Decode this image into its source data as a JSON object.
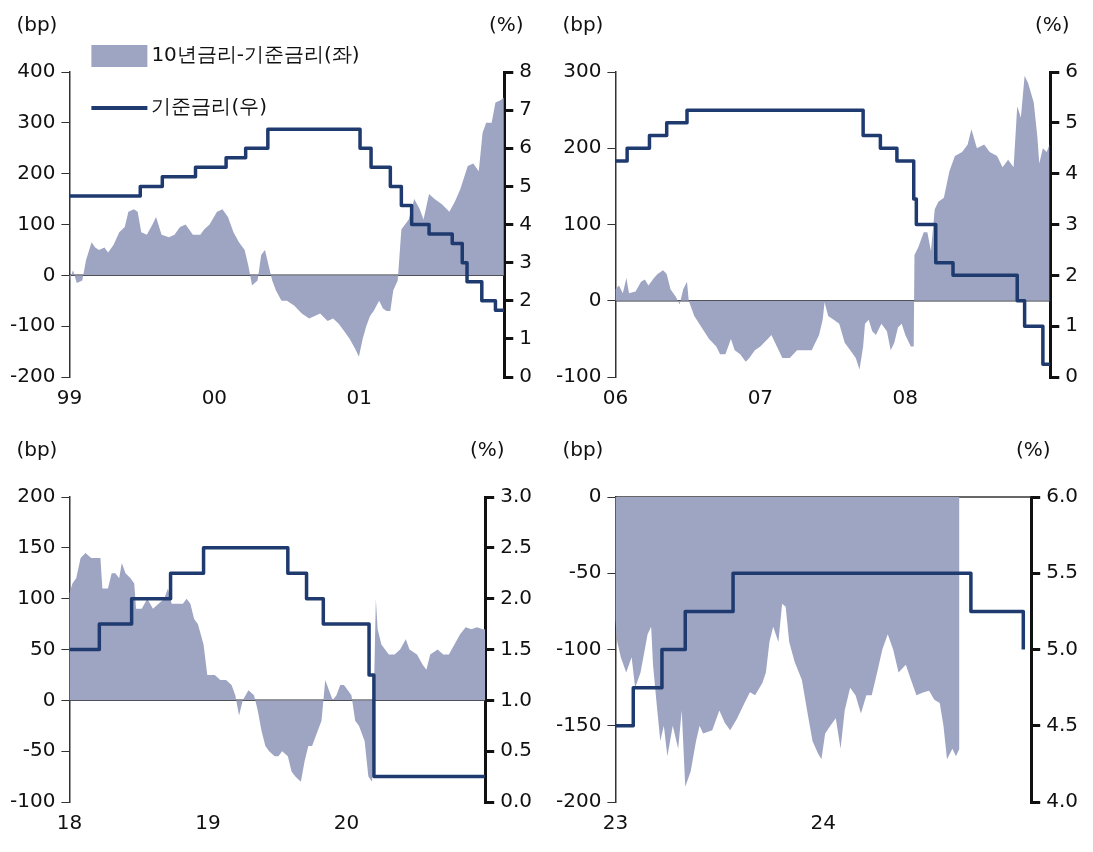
{
  "chart_data": [
    {
      "type": "area",
      "ylabel": "(bp)",
      "y2label": "(%)",
      "legend": "top left",
      "xlim": [
        1999,
        2002
      ],
      "xticks": [
        {
          "value": 1999,
          "label": "99"
        },
        {
          "value": 2000,
          "label": "00"
        },
        {
          "value": 2001,
          "label": "01"
        }
      ],
      "ylim": [
        -200,
        400
      ],
      "yticks": [
        -200,
        -100,
        0,
        100,
        200,
        300,
        400
      ],
      "y2lim": [
        0,
        8
      ],
      "y2ticks": [
        0,
        1,
        2,
        3,
        4,
        5,
        6,
        7,
        8
      ],
      "ref_lines": [
        {
          "axis": "y",
          "value": 0,
          "color": "#333333"
        }
      ],
      "series": [
        {
          "name": "10년금리-기준금리(좌)",
          "type": "area",
          "color": "#9ea5c3",
          "x": [
            1999.0,
            1999.025,
            1999.051,
            1999.089,
            1999.115,
            1999.153,
            1999.178,
            1999.204,
            1999.242,
            1999.267,
            1999.305,
            1999.344,
            1999.382,
            1999.407,
            1999.445,
            1999.471,
            1999.496,
            1999.534,
            1999.573,
            1999.598,
            1999.636,
            1999.687,
            1999.725,
            1999.763,
            1999.802,
            1999.852,
            1999.903,
            1999.929,
            1999.967,
            2000.018,
            2000.056,
            2000.094,
            2000.132,
            2000.17,
            2000.209,
            2000.234,
            2000.26,
            2000.298,
            2000.323,
            2000.349,
            2000.374,
            2000.399,
            2000.425,
            2000.463,
            2000.501,
            2000.552,
            2000.603,
            2000.654,
            2000.692,
            2000.73,
            2000.781,
            2000.819,
            2000.858,
            2000.896,
            2000.934,
            2000.972,
            2000.997,
            2001.023,
            2001.048,
            2001.074,
            2001.099,
            2001.137,
            2001.163,
            2001.188,
            2001.214,
            2001.234,
            2001.265,
            2001.29,
            2001.341,
            2001.379,
            2001.417,
            2001.443,
            2001.481,
            2001.519,
            2001.57,
            2001.621,
            2001.659,
            2001.697,
            2001.748,
            2001.786,
            2001.824,
            2001.85,
            2001.875,
            2001.913,
            2001.939,
            2001.977,
            2001.997
          ],
          "values": [
            -10,
            10,
            -15,
            -10,
            30,
            65,
            55,
            50,
            55,
            45,
            60,
            85,
            95,
            125,
            130,
            125,
            85,
            80,
            100,
            115,
            80,
            75,
            80,
            95,
            100,
            80,
            80,
            90,
            100,
            125,
            130,
            115,
            85,
            65,
            50,
            20,
            -20,
            -10,
            40,
            50,
            20,
            -10,
            -30,
            -50,
            -50,
            -60,
            -75,
            -85,
            -80,
            -75,
            -90,
            -85,
            -95,
            -110,
            -125,
            -145,
            -160,
            -125,
            -100,
            -80,
            -70,
            -50,
            -65,
            -70,
            -70,
            -30,
            -10,
            90,
            110,
            150,
            130,
            110,
            160,
            150,
            140,
            125,
            145,
            170,
            215,
            220,
            205,
            280,
            300,
            300,
            340,
            345,
            350
          ]
        },
        {
          "name": "기준금리(우)",
          "type": "step",
          "axis": "y2",
          "color": "#1e3a6f",
          "x": [
            1999.0,
            1999.489,
            1999.641,
            1999.87,
            2000.081,
            2000.216,
            2000.369,
            2001.005,
            2001.081,
            2001.214,
            2001.29,
            2001.361,
            2001.481,
            2001.641,
            2001.71,
            2001.743,
            2001.845,
            2001.939,
            2002.0
          ],
          "values": [
            4.75,
            5.0,
            5.25,
            5.5,
            5.75,
            6.0,
            6.5,
            6.0,
            5.5,
            5.0,
            4.5,
            4.0,
            3.75,
            3.5,
            3.0,
            2.5,
            2.0,
            1.75,
            1.75
          ]
        }
      ]
    },
    {
      "type": "area",
      "ylabel": "(bp)",
      "y2label": "(%)",
      "xlim": [
        2006,
        2009
      ],
      "xticks": [
        {
          "value": 2006,
          "label": "06"
        },
        {
          "value": 2007,
          "label": "07"
        },
        {
          "value": 2008,
          "label": "08"
        }
      ],
      "ylim": [
        -100,
        300
      ],
      "yticks": [
        -100,
        0,
        100,
        200,
        300
      ],
      "y2lim": [
        0,
        6
      ],
      "y2ticks": [
        0,
        1,
        2,
        3,
        4,
        5,
        6
      ],
      "ref_lines": [
        {
          "axis": "y",
          "value": 0,
          "color": "#333333"
        }
      ],
      "series": [
        {
          "type": "area",
          "color": "#9ea5c3",
          "x": [
            2006.0,
            2006.025,
            2006.051,
            2006.076,
            2006.094,
            2006.139,
            2006.177,
            2006.203,
            2006.228,
            2006.266,
            2006.291,
            2006.329,
            2006.354,
            2006.38,
            2006.418,
            2006.443,
            2006.468,
            2006.494,
            2006.506,
            2006.544,
            2006.595,
            2006.646,
            2006.696,
            2006.722,
            2006.759,
            2006.797,
            2006.823,
            2006.861,
            2006.899,
            2006.924,
            2006.962,
            2007.0,
            2007.051,
            2007.076,
            2007.114,
            2007.152,
            2007.203,
            2007.253,
            2007.304,
            2007.354,
            2007.405,
            2007.43,
            2007.443,
            2007.468,
            2007.506,
            2007.544,
            2007.582,
            2007.62,
            2007.658,
            2007.684,
            2007.709,
            2007.722,
            2007.747,
            2007.772,
            2007.797,
            2007.835,
            2007.873,
            2007.899,
            2007.924,
            2007.949,
            2007.975,
            2008.0,
            2008.038,
            2008.058,
            2008.063,
            2008.089,
            2008.127,
            2008.152,
            2008.177,
            2008.203,
            2008.228,
            2008.266,
            2008.304,
            2008.342,
            2008.392,
            2008.43,
            2008.456,
            2008.494,
            2008.544,
            2008.582,
            2008.633,
            2008.671,
            2008.709,
            2008.747,
            2008.772,
            2008.797,
            2008.823,
            2008.848,
            2008.886,
            2008.911,
            2008.924,
            2008.949,
            2008.975,
            2008.995
          ],
          "values": [
            15,
            20,
            10,
            30,
            10,
            12,
            25,
            28,
            20,
            30,
            35,
            40,
            35,
            15,
            5,
            -5,
            15,
            25,
            0,
            -20,
            -35,
            -50,
            -60,
            -70,
            -70,
            -50,
            -65,
            -70,
            -80,
            -75,
            -65,
            -60,
            -50,
            -45,
            -60,
            -75,
            -75,
            -65,
            -65,
            -65,
            -45,
            -25,
            -2,
            -20,
            -25,
            -30,
            -55,
            -65,
            -75,
            -90,
            -60,
            -30,
            -25,
            -40,
            -45,
            -30,
            -40,
            -65,
            -55,
            -35,
            -30,
            -45,
            -60,
            -60,
            60,
            70,
            90,
            90,
            65,
            120,
            130,
            135,
            170,
            190,
            195,
            205,
            225,
            200,
            205,
            195,
            190,
            175,
            185,
            175,
            255,
            240,
            295,
            285,
            260,
            215,
            180,
            200,
            195,
            205
          ]
        },
        {
          "type": "step",
          "axis": "y2",
          "color": "#1e3a6f",
          "x": [
            2006.0,
            2006.081,
            2006.235,
            2006.354,
            2006.494,
            2007.709,
            2007.828,
            2007.942,
            2008.058,
            2008.076,
            2008.21,
            2008.329,
            2008.772,
            2008.823,
            2008.949,
            2009.0
          ],
          "values": [
            4.25,
            4.5,
            4.75,
            5.0,
            5.25,
            4.75,
            4.5,
            4.25,
            3.5,
            3.0,
            2.25,
            2.0,
            1.5,
            1.0,
            0.25,
            0.25
          ]
        }
      ]
    },
    {
      "type": "area",
      "ylabel": "(bp)",
      "y2label": "(%)",
      "xlim": [
        2018,
        2021
      ],
      "xticks": [
        {
          "value": 2018,
          "label": "18"
        },
        {
          "value": 2019,
          "label": "19"
        },
        {
          "value": 2020,
          "label": "20"
        }
      ],
      "ylim": [
        -100,
        200
      ],
      "yticks": [
        -100,
        -50,
        0,
        50,
        100,
        150,
        200
      ],
      "y2lim": [
        0,
        3
      ],
      "y2ticks": [
        {
          "value": 0,
          "label": "0.0"
        },
        {
          "value": 0.5,
          "label": "0.5"
        },
        {
          "value": 1,
          "label": "1.0"
        },
        {
          "value": 1.5,
          "label": "1.5"
        },
        {
          "value": 2,
          "label": "2.0"
        },
        {
          "value": 2.5,
          "label": "2.5"
        },
        {
          "value": 3,
          "label": "3.0"
        }
      ],
      "ref_lines": [
        {
          "axis": "y",
          "value": 0,
          "color": "#333333"
        }
      ],
      "series": [
        {
          "type": "area",
          "color": "#9ea5c3",
          "x": [
            2018.0,
            2018.022,
            2018.049,
            2018.081,
            2018.116,
            2018.157,
            2018.184,
            2018.224,
            2018.238,
            2018.278,
            2018.305,
            2018.332,
            2018.359,
            2018.378,
            2018.405,
            2018.441,
            2018.468,
            2018.481,
            2018.522,
            2018.562,
            2018.603,
            2018.643,
            2018.684,
            2018.711,
            2018.738,
            2018.778,
            2018.819,
            2018.846,
            2018.873,
            2018.9,
            2018.927,
            2018.968,
            2018.995,
            2019.049,
            2019.089,
            2019.13,
            2019.17,
            2019.197,
            2019.224,
            2019.251,
            2019.292,
            2019.332,
            2019.359,
            2019.386,
            2019.414,
            2019.441,
            2019.481,
            2019.508,
            2019.535,
            2019.576,
            2019.603,
            2019.63,
            2019.67,
            2019.697,
            2019.724,
            2019.751,
            2019.792,
            2019.819,
            2019.846,
            2019.873,
            2019.9,
            2019.927,
            2019.954,
            2019.981,
            2020.035,
            2020.062,
            2020.089,
            2020.13,
            2020.157,
            2020.184,
            2020.211,
            2020.224,
            2020.251,
            2020.278,
            2020.305,
            2020.346,
            2020.386,
            2020.427,
            2020.454,
            2020.508,
            2020.549,
            2020.576,
            2020.603,
            2020.657,
            2020.697,
            2020.738,
            2020.778,
            2020.819,
            2020.859,
            2020.9,
            2020.941,
            2020.981,
            2021.0
          ],
          "values": [
            105,
            115,
            120,
            140,
            145,
            140,
            140,
            140,
            110,
            110,
            125,
            125,
            120,
            135,
            125,
            120,
            115,
            90,
            90,
            100,
            90,
            95,
            100,
            110,
            95,
            95,
            95,
            100,
            95,
            80,
            75,
            55,
            25,
            25,
            20,
            20,
            15,
            5,
            -15,
            0,
            10,
            5,
            -10,
            -30,
            -45,
            -50,
            -55,
            -55,
            -50,
            -55,
            -70,
            -75,
            -80,
            -60,
            -45,
            -45,
            -30,
            -20,
            20,
            10,
            0,
            5,
            15,
            15,
            5,
            -20,
            -25,
            -40,
            -75,
            -80,
            100,
            70,
            55,
            50,
            45,
            45,
            50,
            60,
            50,
            45,
            35,
            30,
            45,
            50,
            45,
            45,
            55,
            65,
            72,
            70,
            72,
            70,
            70
          ]
        },
        {
          "type": "step",
          "axis": "y2",
          "color": "#1e3a6f",
          "x": [
            2018.0,
            2018.216,
            2018.449,
            2018.73,
            2018.968,
            2019.576,
            2019.711,
            2019.832,
            2020.162,
            2020.197,
            2021.0
          ],
          "values": [
            1.5,
            1.75,
            2.0,
            2.25,
            2.5,
            2.25,
            2.0,
            1.75,
            1.25,
            0.25,
            0.25
          ]
        }
      ]
    },
    {
      "type": "area",
      "ylabel": "(bp)",
      "y2label": "(%)",
      "xlim": [
        2023,
        2025
      ],
      "xticks": [
        {
          "value": 2023,
          "label": "23"
        },
        {
          "value": 2024,
          "label": "24"
        }
      ],
      "ylim": [
        -200,
        0
      ],
      "yticks": [
        -200,
        -150,
        -100,
        -50,
        0
      ],
      "y2lim": [
        4,
        6
      ],
      "y2ticks": [
        {
          "value": 4,
          "label": "4.0"
        },
        {
          "value": 4.5,
          "label": "4.5"
        },
        {
          "value": 5,
          "label": "5.0"
        },
        {
          "value": 5.5,
          "label": "5.5"
        },
        {
          "value": 6,
          "label": "6.0"
        }
      ],
      "ref_lines": [
        {
          "axis": "y",
          "value": 0,
          "color": "#333333"
        }
      ],
      "series": [
        {
          "type": "area",
          "color": "#9ea5c3",
          "x": [
            2023.0,
            2023.009,
            2023.026,
            2023.052,
            2023.078,
            2023.095,
            2023.121,
            2023.155,
            2023.172,
            2023.181,
            2023.198,
            2023.216,
            2023.233,
            2023.25,
            2023.276,
            2023.302,
            2023.319,
            2023.336,
            2023.362,
            2023.388,
            2023.405,
            2023.422,
            2023.466,
            2023.5,
            2023.526,
            2023.552,
            2023.586,
            2023.621,
            2023.647,
            2023.672,
            2023.707,
            2023.724,
            2023.741,
            2023.759,
            2023.784,
            2023.802,
            2023.819,
            2023.836,
            2023.862,
            2023.897,
            2023.922,
            2023.948,
            2023.974,
            2023.991,
            2024.009,
            2024.034,
            2024.06,
            2024.083,
            2024.103,
            2024.129,
            2024.155,
            2024.181,
            2024.207,
            2024.233,
            2024.259,
            2024.284,
            2024.31,
            2024.336,
            2024.362,
            2024.397,
            2024.422,
            2024.448,
            2024.483,
            2024.509,
            2024.534,
            2024.56,
            2024.578,
            2024.595,
            2024.621,
            2024.638,
            2024.655
          ],
          "values": [
            -80,
            -95,
            -105,
            -115,
            -105,
            -125,
            -115,
            -90,
            -85,
            -110,
            -135,
            -160,
            -150,
            -170,
            -150,
            -165,
            -140,
            -190,
            -180,
            -160,
            -150,
            -155,
            -153,
            -140,
            -148,
            -153,
            -145,
            -135,
            -128,
            -130,
            -122,
            -115,
            -95,
            -85,
            -95,
            -70,
            -72,
            -95,
            -108,
            -120,
            -140,
            -160,
            -168,
            -172,
            -155,
            -150,
            -145,
            -165,
            -140,
            -125,
            -130,
            -142,
            -130,
            -130,
            -115,
            -100,
            -90,
            -100,
            -115,
            -110,
            -120,
            -130,
            -128,
            -127,
            -133,
            -135,
            -150,
            -172,
            -165,
            -170,
            -165
          ]
        },
        {
          "type": "step",
          "axis": "y2",
          "color": "#1e3a6f",
          "x": [
            2023.0,
            2023.086,
            2023.224,
            2023.336,
            2023.566,
            2024.71,
            2024.962
          ],
          "values": [
            4.5,
            4.75,
            5.0,
            5.25,
            5.5,
            5.25,
            5.0
          ]
        }
      ]
    }
  ]
}
